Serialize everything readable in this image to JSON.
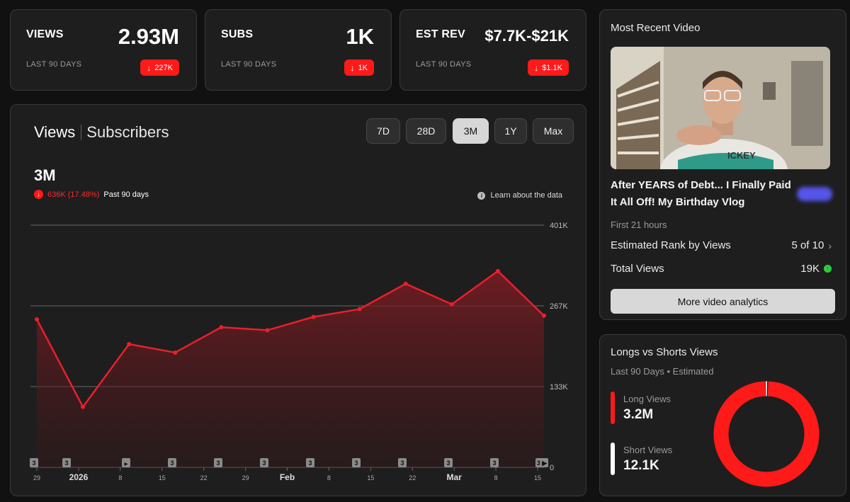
{
  "colors": {
    "accent": "#ff1a1a",
    "chart_line": "#e8202a",
    "positive": "#2ecc40",
    "card_bg": "#1e1e1e"
  },
  "stats": [
    {
      "label": "VIEWS",
      "value": "2.93M",
      "period": "LAST 90 DAYS",
      "change": "227K",
      "direction": "down"
    },
    {
      "label": "SUBS",
      "value": "1K",
      "period": "LAST 90 DAYS",
      "change": "1K",
      "direction": "down"
    },
    {
      "label": "EST REV",
      "value": "$7.7K-$21K",
      "period": "LAST 90 DAYS",
      "change": "$1.1K",
      "direction": "down"
    }
  ],
  "chart_panel": {
    "tabs": [
      "Views",
      "Subscribers"
    ],
    "active_tab": "Views",
    "ranges": [
      "7D",
      "28D",
      "3M",
      "1Y",
      "Max"
    ],
    "active_range": "3M",
    "headline_value": "3M",
    "change_text": "636K (17.48%)",
    "period_text": "Past 90 days",
    "learn_link": "Learn about the data",
    "arrow_icon": "arrow-down-icon",
    "info_icon": "info-icon"
  },
  "chart_data": {
    "type": "area",
    "series": [
      {
        "values": [
          245000,
          100000,
          204000,
          190000,
          232000,
          227000,
          249000,
          262000,
          304000,
          270000,
          325000,
          251000
        ]
      }
    ],
    "ylim": [
      0,
      401000
    ],
    "y_ticks": [
      "401K",
      "267K",
      "133K",
      "0"
    ],
    "x_tick_labels": [
      {
        "label": "29",
        "bold": false
      },
      {
        "label": "2026",
        "bold": true
      },
      {
        "label": "8",
        "bold": false
      },
      {
        "label": "15",
        "bold": false
      },
      {
        "label": "22",
        "bold": false
      },
      {
        "label": "29",
        "bold": false
      },
      {
        "label": "Feb",
        "bold": true
      },
      {
        "label": "8",
        "bold": false
      },
      {
        "label": "15",
        "bold": false
      },
      {
        "label": "22",
        "bold": false
      },
      {
        "label": "Mar",
        "bold": true
      },
      {
        "label": "8",
        "bold": false
      },
      {
        "label": "15",
        "bold": false
      }
    ],
    "upload_markers": [
      "3",
      "3",
      "▶",
      "3",
      "3",
      "3",
      "3",
      "3",
      "3",
      "3",
      "3",
      "3 ▶"
    ],
    "grid": true
  },
  "recent_video": {
    "panel_title": "Most Recent Video",
    "title": "After YEARS of Debt... I Finally Paid It All Off! My Birthday Vlog",
    "time_window": "First 21 hours",
    "rank_label": "Estimated Rank by Views",
    "rank_value": "5 of 10",
    "total_label": "Total Views",
    "total_value": "19K",
    "button": "More video analytics",
    "chevron_icon": "chevron-right-icon",
    "status_icon": "arrow-up-icon"
  },
  "longs_shorts": {
    "title": "Longs vs Shorts Views",
    "subtitle": "Last 90 Days • Estimated",
    "long_label": "Long Views",
    "long_value": "3.2M",
    "short_label": "Short Views",
    "short_value": "12.1K",
    "long_share": 0.9962,
    "long_color": "#ff1a1a",
    "short_color": "#ffffff"
  }
}
